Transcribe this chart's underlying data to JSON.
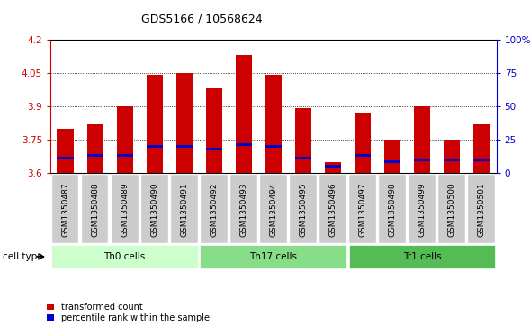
{
  "title": "GDS5166 / 10568624",
  "categories": [
    "GSM1350487",
    "GSM1350488",
    "GSM1350489",
    "GSM1350490",
    "GSM1350491",
    "GSM1350492",
    "GSM1350493",
    "GSM1350494",
    "GSM1350495",
    "GSM1350496",
    "GSM1350497",
    "GSM1350498",
    "GSM1350499",
    "GSM1350500",
    "GSM1350501"
  ],
  "bar_values": [
    3.8,
    3.82,
    3.9,
    4.04,
    4.05,
    3.98,
    4.13,
    4.04,
    3.89,
    3.65,
    3.87,
    3.75,
    3.9,
    3.75,
    3.82
  ],
  "blue_values": [
    3.67,
    3.68,
    3.68,
    3.72,
    3.72,
    3.71,
    3.73,
    3.72,
    3.67,
    3.63,
    3.68,
    3.65,
    3.66,
    3.66,
    3.66
  ],
  "bar_color": "#cc0000",
  "blue_color": "#0000cc",
  "ylim_left": [
    3.6,
    4.2
  ],
  "yticks_left": [
    3.6,
    3.75,
    3.9,
    4.05,
    4.2
  ],
  "yticks_right": [
    0,
    25,
    50,
    75,
    100
  ],
  "yticklabels_right": [
    "0",
    "25",
    "50",
    "75",
    "100%"
  ],
  "cell_groups": [
    {
      "label": "Th0 cells",
      "start": 0,
      "end": 5,
      "color": "#ccffcc"
    },
    {
      "label": "Th17 cells",
      "start": 5,
      "end": 10,
      "color": "#88dd88"
    },
    {
      "label": "Tr1 cells",
      "start": 10,
      "end": 15,
      "color": "#55bb55"
    }
  ],
  "cell_type_label": "cell type",
  "legend_items": [
    {
      "label": "transformed count",
      "color": "#cc0000"
    },
    {
      "label": "percentile rank within the sample",
      "color": "#0000cc"
    }
  ],
  "bar_width": 0.55,
  "xticklabel_bg": "#cccccc",
  "title_fontsize": 9,
  "axis_fontsize": 7.5
}
